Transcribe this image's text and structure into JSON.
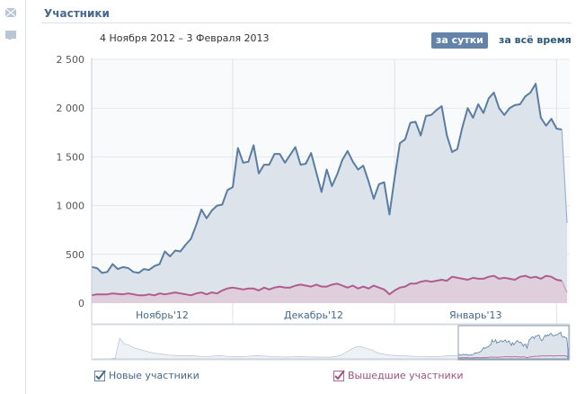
{
  "header": {
    "title": "Участники",
    "date_range": "4 Ноября 2012 – 3 Февраля 2013"
  },
  "sidebar_icons": [
    "mail-icon",
    "comment-icon"
  ],
  "period": {
    "active": "за сутки",
    "inactive": "за всё время"
  },
  "legend": {
    "new": "Новые участники",
    "left": "Вышедшие участники"
  },
  "colors": {
    "new_line": "#597da3",
    "new_fill": "#dce3ea",
    "left_line": "#b05c8c",
    "left_fill": "#dfcfdc",
    "accent": "#6383a8"
  },
  "chart_data": {
    "type": "area",
    "title": "Участники",
    "x_start": "2012-11-04",
    "x_end": "2013-02-03",
    "xlabel": "",
    "ylabel": "",
    "ylim": [
      0,
      2500
    ],
    "yticks": [
      0,
      500,
      1000,
      1500,
      2000,
      2500
    ],
    "ytick_labels": [
      "0",
      "500",
      "1 000",
      "1 500",
      "2 000",
      "2 500"
    ],
    "month_labels": [
      "Ноябрь'12",
      "Декабрь'12",
      "Январь'13"
    ],
    "grid": true,
    "legend_position": "bottom",
    "series": [
      {
        "name": "Новые участники",
        "values": [
          370,
          360,
          310,
          320,
          400,
          350,
          370,
          360,
          320,
          310,
          350,
          340,
          380,
          400,
          530,
          480,
          540,
          530,
          600,
          660,
          800,
          960,
          870,
          950,
          1000,
          1010,
          1160,
          1190,
          1590,
          1440,
          1450,
          1620,
          1330,
          1420,
          1420,
          1530,
          1530,
          1440,
          1520,
          1600,
          1420,
          1430,
          1540,
          1340,
          1140,
          1370,
          1200,
          1320,
          1470,
          1560,
          1450,
          1370,
          1410,
          1250,
          1070,
          1220,
          1240,
          910,
          1290,
          1640,
          1680,
          1850,
          1860,
          1720,
          1920,
          1930,
          1980,
          2020,
          1720,
          1550,
          1580,
          1810,
          2000,
          1900,
          2040,
          1950,
          2100,
          2160,
          2000,
          1930,
          2000,
          2030,
          2040,
          2120,
          2160,
          2250,
          1900,
          1820,
          1890,
          1790,
          1780,
          820
        ]
      },
      {
        "name": "Вышедшие участники",
        "values": [
          80,
          90,
          90,
          90,
          100,
          95,
          90,
          100,
          90,
          80,
          80,
          90,
          80,
          100,
          90,
          100,
          110,
          100,
          90,
          80,
          100,
          110,
          90,
          110,
          100,
          130,
          150,
          160,
          150,
          140,
          150,
          150,
          130,
          160,
          140,
          160,
          170,
          160,
          160,
          180,
          190,
          180,
          170,
          190,
          170,
          170,
          190,
          200,
          180,
          160,
          180,
          150,
          170,
          150,
          180,
          160,
          140,
          90,
          130,
          160,
          170,
          200,
          200,
          220,
          230,
          220,
          230,
          240,
          230,
          270,
          260,
          250,
          240,
          260,
          250,
          250,
          270,
          280,
          250,
          260,
          250,
          240,
          270,
          280,
          260,
          270,
          250,
          280,
          270,
          240,
          230,
          110
        ]
      }
    ]
  }
}
